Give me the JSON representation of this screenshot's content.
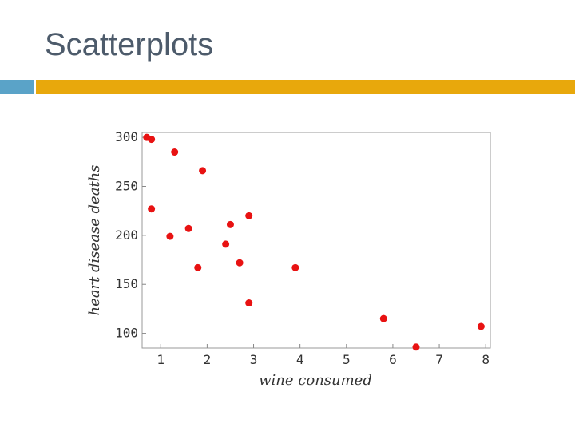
{
  "slide": {
    "title": "Scatterplots"
  },
  "colors": {
    "title": "#4d5b6b",
    "accent_left": "#5aa3c8",
    "accent_right": "#e8a80c",
    "point": "#e81212",
    "frame": "#999999",
    "grid": "#d9d9d9"
  },
  "chart_data": {
    "type": "scatter",
    "xlabel": "wine consumed",
    "ylabel": "heart disease deaths",
    "xlim": [
      0.6,
      8.1
    ],
    "ylim": [
      85,
      305
    ],
    "x_ticks": [
      1,
      2,
      3,
      4,
      5,
      6,
      7,
      8
    ],
    "y_ticks": [
      100,
      150,
      200,
      250,
      300
    ],
    "grid": false,
    "series": [
      {
        "points": [
          {
            "x": 0.7,
            "y": 300
          },
          {
            "x": 0.8,
            "y": 298
          },
          {
            "x": 1.3,
            "y": 285
          },
          {
            "x": 1.9,
            "y": 266
          },
          {
            "x": 0.8,
            "y": 227
          },
          {
            "x": 2.9,
            "y": 220
          },
          {
            "x": 2.5,
            "y": 211
          },
          {
            "x": 1.6,
            "y": 207
          },
          {
            "x": 1.2,
            "y": 199
          },
          {
            "x": 2.4,
            "y": 191
          },
          {
            "x": 2.7,
            "y": 172
          },
          {
            "x": 1.8,
            "y": 167
          },
          {
            "x": 3.9,
            "y": 167
          },
          {
            "x": 2.9,
            "y": 131
          },
          {
            "x": 5.8,
            "y": 115
          },
          {
            "x": 7.9,
            "y": 107
          },
          {
            "x": 6.5,
            "y": 86
          }
        ]
      }
    ]
  }
}
